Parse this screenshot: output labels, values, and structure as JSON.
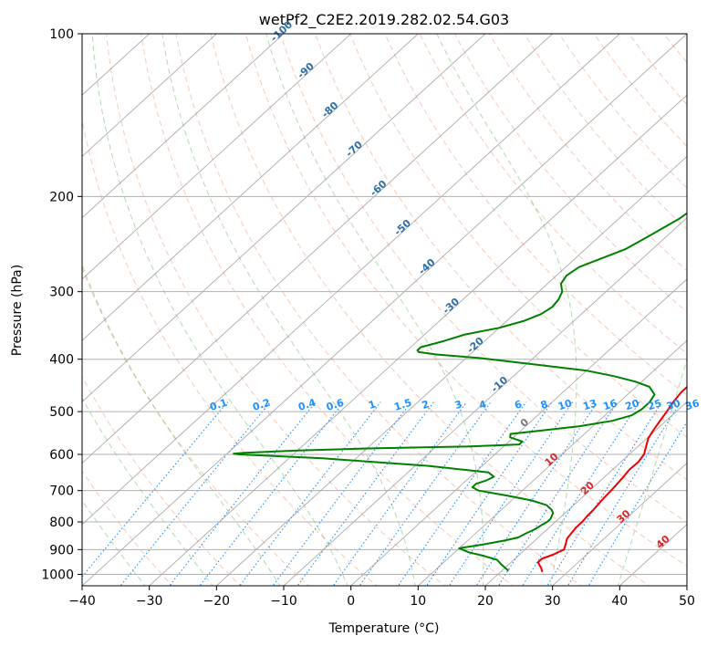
{
  "chart_data": {
    "type": "line",
    "title": "wetPf2_C2E2.2019.282.02.54.G03",
    "xlabel": "Temperature (°C)",
    "ylabel": "Pressure (hPa)",
    "xlim": [
      -40,
      50
    ],
    "ylim": [
      1050,
      100
    ],
    "y_scale": "log",
    "x_ticks": [
      "−40",
      "−30",
      "−20",
      "−10",
      "0",
      "10",
      "20",
      "30",
      "40",
      "50"
    ],
    "y_ticks": [
      "100",
      "200",
      "300",
      "400",
      "500",
      "600",
      "700",
      "800",
      "900",
      "1000"
    ],
    "grid": true,
    "colors": {
      "temperature": "#ee0000",
      "dewpoint": "#008000",
      "dry_adiabat": "#f4a582",
      "moist_adiabat": "#4daf4a",
      "mixing_ratio": "#1e90ff",
      "isotherm": "#888888",
      "isotherm_label": "#2f6fa8",
      "ref_curve": "#d2b48c",
      "freezing_label": "#777777",
      "warm_label": "#d62728"
    },
    "series": [
      {
        "key": "temperature",
        "pressure": [
          990,
          975,
          950,
          935,
          920,
          900,
          880,
          860,
          845,
          820,
          800,
          780,
          760,
          740,
          720,
          700,
          680,
          660,
          640,
          620,
          600,
          580,
          560,
          540,
          520,
          500,
          480,
          460,
          440,
          420,
          400,
          380,
          360,
          340,
          320,
          300,
          280,
          260,
          240,
          220,
          200,
          180,
          160,
          140,
          125,
          115,
          108,
          100
        ],
        "temperature": [
          26.2,
          25.5,
          24.0,
          24.0,
          25.0,
          25.8,
          25.2,
          24.5,
          24.3,
          24.0,
          24.0,
          23.8,
          23.7,
          23.5,
          23.3,
          23.2,
          23.0,
          22.8,
          22.5,
          22.6,
          22.2,
          21.2,
          20.2,
          19.6,
          19.1,
          18.6,
          18.0,
          17.6,
          17.6,
          18.0,
          18.0,
          17.1,
          15.5,
          13.0,
          10.4,
          7.6,
          5.0,
          2.5,
          0.0,
          -3.0,
          -5.5,
          -8.0,
          -8.9,
          -9.2,
          -8.4,
          -7.6,
          -7.0,
          -6.5
        ]
      },
      {
        "key": "dewpoint",
        "pressure": [
          985,
          960,
          940,
          925,
          910,
          895,
          880,
          866,
          855,
          840,
          825,
          810,
          800,
          790,
          780,
          770,
          760,
          745,
          730,
          715,
          700,
          690,
          680,
          670,
          660,
          648,
          630,
          610,
          600,
          598,
          596,
          590,
          585,
          580,
          575,
          568,
          558,
          550,
          542,
          532,
          520,
          508,
          495,
          480,
          465,
          450,
          440,
          430,
          420,
          410,
          398,
          392,
          388,
          385,
          380,
          370,
          360,
          350,
          340,
          330,
          320,
          310,
          300,
          290,
          280,
          270,
          260,
          250,
          240,
          230,
          220,
          210,
          200,
          190,
          180,
          170,
          160,
          150,
          140,
          130,
          120,
          112,
          106,
          100
        ],
        "dewpoint": [
          21.0,
          19.0,
          17.5,
          15.0,
          12.0,
          10.0,
          13.0,
          15.5,
          17.0,
          17.5,
          18.2,
          18.5,
          18.8,
          18.8,
          18.5,
          18.2,
          17.5,
          16.0,
          13.0,
          8.5,
          3.5,
          2.0,
          2.0,
          3.0,
          3.5,
          2.0,
          -8.0,
          -25.0,
          -38.0,
          -39.0,
          -37.5,
          -30.0,
          -20.0,
          -5.0,
          2.0,
          2.0,
          -0.5,
          -1.0,
          3.0,
          8.0,
          12.0,
          14.0,
          14.5,
          14.5,
          14.0,
          12.0,
          9.0,
          5.0,
          0.0,
          -8.0,
          -18.0,
          -25.0,
          -28.0,
          -28.5,
          -28.5,
          -26.0,
          -24.0,
          -20.0,
          -17.5,
          -16.0,
          -15.5,
          -15.8,
          -16.5,
          -18.0,
          -18.5,
          -18.0,
          -16.0,
          -14.0,
          -13.0,
          -12.0,
          -11.0,
          -10.5,
          -10.0,
          -11.0,
          -11.5,
          -12.0,
          -12.6,
          -13.3,
          -14.0,
          -14.5,
          -14.0,
          -12.5,
          -10.5,
          -7.0
        ]
      }
    ],
    "isotherm_labels": [
      "-100",
      "-90",
      "-80",
      "-70",
      "-60",
      "-50",
      "-40",
      "-30",
      "-20",
      "-10"
    ],
    "freezing_label": "0",
    "warm_isotherm_labels": [
      "10",
      "20",
      "30",
      "40"
    ],
    "mixing_ratio_labels": [
      "0.1",
      "0.2",
      "0.4",
      "0.6",
      "1",
      "1.5",
      "2",
      "3",
      "4",
      "6",
      "8",
      "10",
      "13",
      "16",
      "20",
      "25",
      "30",
      "36"
    ]
  }
}
